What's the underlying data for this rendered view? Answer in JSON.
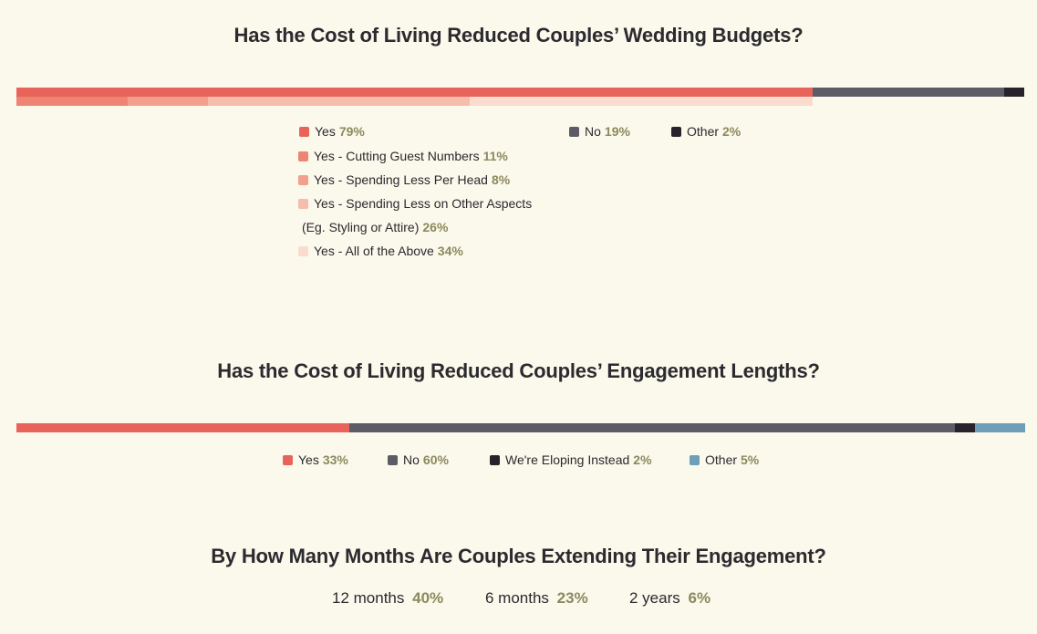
{
  "chart_data": [
    {
      "type": "bar",
      "subtype": "stacked-100",
      "title": "Has the Cost of Living Reduced Couples’ Wedding Budgets?",
      "main_series": [
        {
          "name": "Yes",
          "value": 79,
          "label": "79%",
          "color": "#e8635a"
        },
        {
          "name": "No",
          "value": 19,
          "label": "19%",
          "color": "#5c5c66"
        },
        {
          "name": "Other",
          "value": 2,
          "label": "2%",
          "color": "#26232a"
        }
      ],
      "sub_series": [
        {
          "name": "Yes - Cutting Guest Numbers",
          "value": 11,
          "label": "11%",
          "color": "#ee8473"
        },
        {
          "name": "Yes - Spending Less Per Head",
          "value": 8,
          "label": "8%",
          "color": "#f2a08d"
        },
        {
          "name": "Yes - Spending Less on Other Aspects (Eg. Styling or Attire)",
          "line1": "Yes - Spending Less on Other Aspects",
          "line2": "(Eg. Styling or Attire)",
          "value": 26,
          "label": "26%",
          "color": "#f6bcac"
        },
        {
          "name": "Yes - All of the Above",
          "value": 34,
          "label": "34%",
          "color": "#fadccf"
        }
      ]
    },
    {
      "type": "bar",
      "subtype": "stacked-100",
      "title": "Has the Cost of Living Reduced Couples’ Engagement Lengths?",
      "series": [
        {
          "name": "Yes",
          "value": 33,
          "label": "33%",
          "color": "#e8635a"
        },
        {
          "name": "No",
          "value": 60,
          "label": "60%",
          "color": "#5c5c66"
        },
        {
          "name": "We're Eloping Instead",
          "value": 2,
          "label": "2%",
          "color": "#26232a"
        },
        {
          "name": "Other",
          "value": 5,
          "label": "5%",
          "color": "#6e9fb8"
        }
      ]
    },
    {
      "type": "table",
      "title": "By How Many Months Are Couples Extending Their Engagement?",
      "items": [
        {
          "name": "12 months",
          "value": 40,
          "label": "40%"
        },
        {
          "name": "6 months",
          "value": 23,
          "label": "23%"
        },
        {
          "name": "2 years",
          "value": 6,
          "label": "6%"
        }
      ]
    }
  ]
}
